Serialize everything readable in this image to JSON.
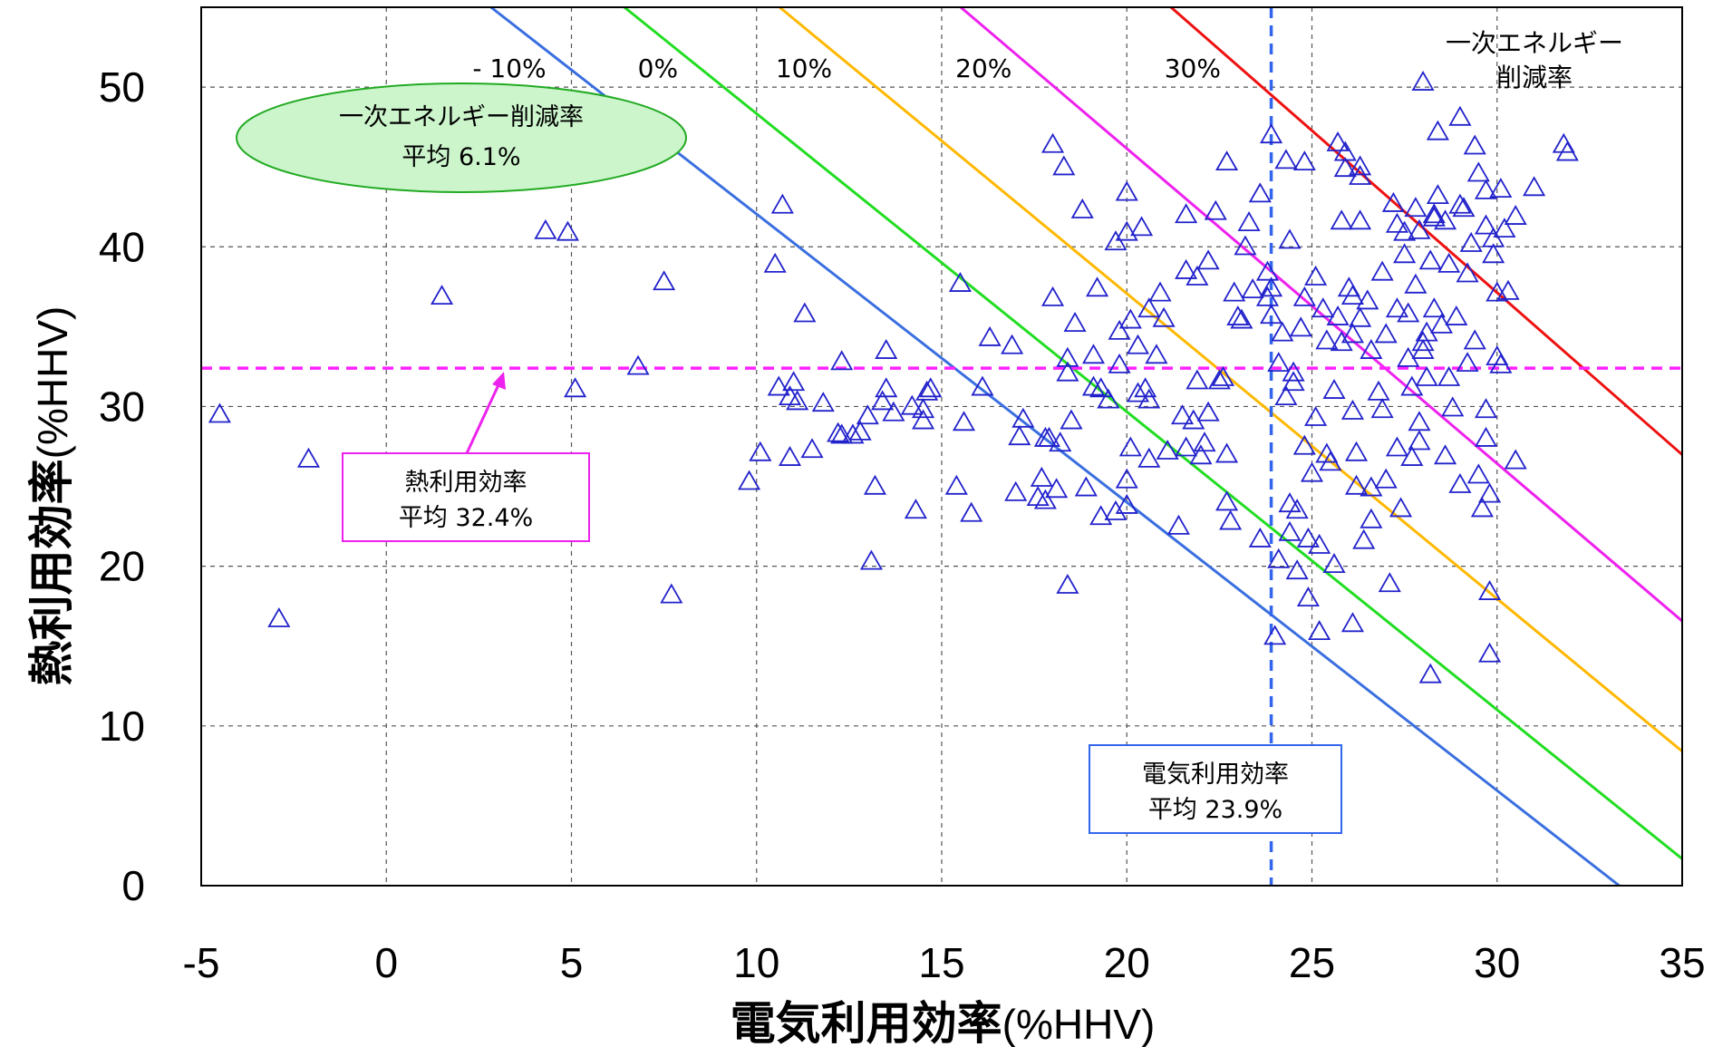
{
  "chart_data": {
    "type": "scatter",
    "title": "",
    "xlabel": "電気利用効率",
    "xlabel_unit": "(%HHV)",
    "ylabel": "熱利用効率",
    "ylabel_unit": "(%HHV)",
    "xlim": [
      -5,
      35
    ],
    "ylim": [
      0,
      55
    ],
    "x_ticks": [
      "-5",
      "0",
      "5",
      "10",
      "15",
      "20",
      "25",
      "30",
      "35"
    ],
    "y_ticks": [
      "0",
      "10",
      "20",
      "30",
      "40",
      "50"
    ],
    "grid": true,
    "marker": "triangle-open",
    "marker_color": "#2222cc",
    "reduction_lines": [
      {
        "label": "- 10%",
        "color": "#3a6fe0",
        "x_at_y0": 33.3,
        "y_at_x0": 60.1
      },
      {
        "label": "0%",
        "color": "#22dd22",
        "x_at_y0": 35.9,
        "y_at_x0": 67.0
      },
      {
        "label": "10%",
        "color": "#ffb800",
        "x_at_y0": 39.4,
        "y_at_x0": 75.3
      },
      {
        "label": "20%",
        "color": "#ee22ee",
        "x_at_y0": 43.4,
        "y_at_x0": 85.6
      },
      {
        "label": "30%",
        "color": "#ee1111",
        "x_at_y0": 48.3,
        "y_at_x0": 98.0
      }
    ],
    "reduction_lines_title": [
      "一次エネルギー",
      "削減率"
    ],
    "mean_heat_efficiency": 32.4,
    "mean_electric_efficiency": 23.9,
    "mean_line_colors": {
      "heat": "#ff22ff",
      "electric": "#3366ee"
    },
    "annotations": {
      "primary_energy": {
        "line1": "一次エネルギー削減率",
        "line2": "平均 6.1%",
        "fill": "#ccf5cc",
        "stroke": "#22aa22"
      },
      "heat": {
        "line1": "熱利用効率",
        "line2": "平均 32.4%",
        "stroke": "#ee22ee"
      },
      "electric": {
        "line1": "電気利用効率",
        "line2": "平均 23.9%",
        "stroke": "#3366ee"
      }
    },
    "points": [
      [
        -4.5,
        29.5
      ],
      [
        -2.9,
        16.7
      ],
      [
        -2.1,
        26.7
      ],
      [
        1.5,
        36.9
      ],
      [
        4.3,
        41.0
      ],
      [
        4.9,
        40.9
      ],
      [
        5.1,
        31.1
      ],
      [
        6.8,
        32.5
      ],
      [
        7.5,
        37.8
      ],
      [
        7.7,
        18.2
      ],
      [
        9.8,
        25.3
      ],
      [
        10.1,
        27.1
      ],
      [
        10.5,
        38.9
      ],
      [
        10.7,
        42.6
      ],
      [
        10.6,
        31.2
      ],
      [
        10.9,
        30.6
      ],
      [
        10.9,
        26.8
      ],
      [
        11.0,
        31.5
      ],
      [
        11.1,
        30.3
      ],
      [
        11.3,
        35.8
      ],
      [
        11.5,
        27.3
      ],
      [
        11.8,
        30.2
      ],
      [
        12.2,
        28.3
      ],
      [
        12.3,
        32.8
      ],
      [
        12.3,
        28.2
      ],
      [
        12.6,
        28.2
      ],
      [
        12.8,
        28.4
      ],
      [
        13.0,
        29.4
      ],
      [
        13.1,
        20.3
      ],
      [
        13.2,
        25.0
      ],
      [
        13.4,
        30.3
      ],
      [
        13.5,
        33.5
      ],
      [
        13.5,
        31.1
      ],
      [
        13.7,
        29.6
      ],
      [
        14.2,
        30.0
      ],
      [
        14.3,
        23.5
      ],
      [
        14.5,
        29.1
      ],
      [
        14.5,
        29.8
      ],
      [
        14.6,
        30.9
      ],
      [
        14.7,
        31.1
      ],
      [
        15.4,
        25.0
      ],
      [
        15.5,
        37.7
      ],
      [
        15.6,
        29.0
      ],
      [
        15.8,
        23.3
      ],
      [
        16.1,
        31.2
      ],
      [
        16.3,
        34.3
      ],
      [
        16.9,
        33.8
      ],
      [
        17.0,
        24.6
      ],
      [
        17.1,
        28.1
      ],
      [
        17.2,
        29.2
      ],
      [
        17.6,
        24.3
      ],
      [
        17.7,
        25.5
      ],
      [
        17.8,
        24.1
      ],
      [
        17.8,
        28.0
      ],
      [
        17.9,
        28.0
      ],
      [
        18.0,
        46.4
      ],
      [
        18.0,
        36.8
      ],
      [
        18.1,
        24.8
      ],
      [
        18.2,
        27.7
      ],
      [
        18.3,
        45.0
      ],
      [
        18.4,
        18.8
      ],
      [
        18.4,
        33.0
      ],
      [
        18.4,
        32.1
      ],
      [
        18.5,
        29.1
      ],
      [
        18.6,
        35.2
      ],
      [
        18.8,
        42.3
      ],
      [
        18.9,
        24.9
      ],
      [
        19.1,
        33.2
      ],
      [
        19.1,
        31.2
      ],
      [
        19.2,
        37.4
      ],
      [
        19.3,
        23.1
      ],
      [
        19.3,
        31.1
      ],
      [
        19.5,
        30.4
      ],
      [
        19.7,
        40.3
      ],
      [
        19.7,
        23.4
      ],
      [
        19.8,
        34.7
      ],
      [
        19.8,
        32.6
      ],
      [
        20.0,
        40.9
      ],
      [
        20.0,
        43.4
      ],
      [
        20.1,
        35.4
      ],
      [
        20.0,
        23.8
      ],
      [
        20.0,
        25.4
      ],
      [
        20.1,
        27.4
      ],
      [
        20.3,
        30.8
      ],
      [
        20.3,
        33.8
      ],
      [
        20.4,
        41.2
      ],
      [
        20.5,
        31.1
      ],
      [
        20.6,
        36.1
      ],
      [
        20.6,
        30.4
      ],
      [
        20.6,
        26.7
      ],
      [
        20.8,
        33.2
      ],
      [
        20.9,
        37.1
      ],
      [
        21.0,
        35.5
      ],
      [
        21.1,
        27.2
      ],
      [
        21.4,
        22.5
      ],
      [
        21.5,
        29.4
      ],
      [
        21.6,
        38.5
      ],
      [
        21.6,
        27.4
      ],
      [
        21.6,
        42.0
      ],
      [
        21.8,
        29.1
      ],
      [
        21.9,
        38.1
      ],
      [
        21.9,
        31.6
      ],
      [
        22.0,
        26.9
      ],
      [
        22.1,
        27.7
      ],
      [
        22.2,
        39.1
      ],
      [
        22.2,
        29.6
      ],
      [
        22.5,
        31.6
      ],
      [
        22.4,
        42.2
      ],
      [
        22.6,
        31.8
      ],
      [
        22.7,
        45.3
      ],
      [
        22.7,
        24.0
      ],
      [
        22.7,
        27.0
      ],
      [
        22.8,
        22.8
      ],
      [
        22.9,
        37.1
      ],
      [
        23.0,
        35.6
      ],
      [
        23.1,
        35.4
      ],
      [
        23.2,
        40.0
      ],
      [
        23.3,
        41.5
      ],
      [
        23.4,
        37.3
      ],
      [
        23.6,
        43.3
      ],
      [
        23.6,
        21.7
      ],
      [
        23.8,
        36.8
      ],
      [
        23.8,
        38.4
      ],
      [
        23.9,
        47.0
      ],
      [
        23.9,
        35.7
      ],
      [
        23.9,
        37.4
      ],
      [
        24.0,
        15.6
      ],
      [
        24.1,
        32.7
      ],
      [
        24.1,
        20.4
      ],
      [
        24.2,
        34.6
      ],
      [
        24.3,
        45.4
      ],
      [
        24.3,
        30.6
      ],
      [
        24.4,
        23.9
      ],
      [
        24.4,
        40.4
      ],
      [
        24.4,
        22.1
      ],
      [
        24.5,
        31.5
      ],
      [
        24.5,
        32.1
      ],
      [
        24.6,
        23.5
      ],
      [
        24.6,
        19.7
      ],
      [
        24.7,
        34.9
      ],
      [
        24.8,
        45.3
      ],
      [
        24.8,
        36.8
      ],
      [
        24.8,
        27.5
      ],
      [
        24.9,
        21.7
      ],
      [
        24.9,
        18.0
      ],
      [
        25.0,
        25.8
      ],
      [
        25.1,
        29.3
      ],
      [
        25.1,
        38.1
      ],
      [
        25.2,
        21.3
      ],
      [
        25.2,
        15.9
      ],
      [
        25.3,
        36.1
      ],
      [
        25.4,
        27.0
      ],
      [
        25.4,
        34.1
      ],
      [
        25.5,
        26.5
      ],
      [
        25.6,
        31.0
      ],
      [
        25.6,
        20.1
      ],
      [
        25.7,
        46.5
      ],
      [
        25.7,
        35.6
      ],
      [
        25.8,
        41.6
      ],
      [
        25.8,
        34.0
      ],
      [
        25.9,
        45.9
      ],
      [
        25.9,
        44.9
      ],
      [
        26.0,
        37.4
      ],
      [
        26.1,
        16.4
      ],
      [
        26.1,
        34.5
      ],
      [
        26.1,
        36.9
      ],
      [
        26.1,
        29.7
      ],
      [
        26.2,
        25.0
      ],
      [
        26.2,
        27.1
      ],
      [
        26.3,
        45.0
      ],
      [
        26.3,
        44.4
      ],
      [
        26.3,
        41.6
      ],
      [
        26.3,
        35.5
      ],
      [
        26.4,
        21.6
      ],
      [
        26.5,
        36.6
      ],
      [
        26.6,
        24.9
      ],
      [
        26.6,
        22.9
      ],
      [
        26.6,
        33.5
      ],
      [
        26.8,
        30.9
      ],
      [
        26.9,
        38.4
      ],
      [
        26.9,
        29.8
      ],
      [
        27.0,
        34.5
      ],
      [
        27.0,
        25.4
      ],
      [
        27.1,
        18.9
      ],
      [
        27.2,
        42.7
      ],
      [
        27.3,
        36.1
      ],
      [
        27.3,
        41.4
      ],
      [
        27.3,
        27.4
      ],
      [
        27.4,
        23.6
      ],
      [
        27.5,
        39.5
      ],
      [
        27.5,
        40.9
      ],
      [
        27.6,
        35.8
      ],
      [
        27.6,
        33.0
      ],
      [
        27.7,
        26.8
      ],
      [
        27.7,
        31.2
      ],
      [
        27.8,
        42.4
      ],
      [
        27.8,
        37.6
      ],
      [
        27.9,
        41.0
      ],
      [
        27.9,
        29.0
      ],
      [
        27.9,
        27.8
      ],
      [
        28.0,
        50.3
      ],
      [
        28.0,
        34.0
      ],
      [
        28.0,
        33.5
      ],
      [
        28.1,
        34.6
      ],
      [
        28.1,
        31.8
      ],
      [
        28.2,
        13.2
      ],
      [
        28.2,
        39.1
      ],
      [
        28.3,
        36.1
      ],
      [
        28.3,
        41.8
      ],
      [
        28.3,
        42.0
      ],
      [
        28.4,
        47.2
      ],
      [
        28.4,
        43.2
      ],
      [
        28.5,
        35.1
      ],
      [
        28.6,
        41.6
      ],
      [
        28.6,
        26.9
      ],
      [
        28.7,
        38.9
      ],
      [
        28.7,
        31.8
      ],
      [
        28.8,
        29.9
      ],
      [
        28.9,
        35.6
      ],
      [
        29.0,
        48.1
      ],
      [
        29.0,
        42.6
      ],
      [
        29.0,
        25.1
      ],
      [
        29.1,
        42.4
      ],
      [
        29.2,
        38.3
      ],
      [
        29.2,
        32.7
      ],
      [
        29.3,
        40.2
      ],
      [
        29.4,
        46.3
      ],
      [
        29.4,
        34.1
      ],
      [
        29.5,
        44.6
      ],
      [
        29.5,
        25.7
      ],
      [
        29.6,
        23.6
      ],
      [
        29.7,
        41.3
      ],
      [
        29.7,
        43.5
      ],
      [
        29.7,
        28.0
      ],
      [
        29.7,
        29.8
      ],
      [
        29.8,
        24.5
      ],
      [
        29.8,
        14.5
      ],
      [
        29.8,
        18.4
      ],
      [
        29.9,
        40.5
      ],
      [
        29.9,
        39.5
      ],
      [
        30.0,
        37.1
      ],
      [
        30.0,
        33.1
      ],
      [
        30.1,
        32.6
      ],
      [
        30.1,
        43.6
      ],
      [
        30.2,
        41.1
      ],
      [
        30.3,
        37.2
      ],
      [
        30.5,
        26.6
      ],
      [
        30.5,
        41.9
      ],
      [
        31.0,
        43.7
      ],
      [
        31.8,
        46.4
      ],
      [
        31.9,
        45.9
      ]
    ]
  }
}
